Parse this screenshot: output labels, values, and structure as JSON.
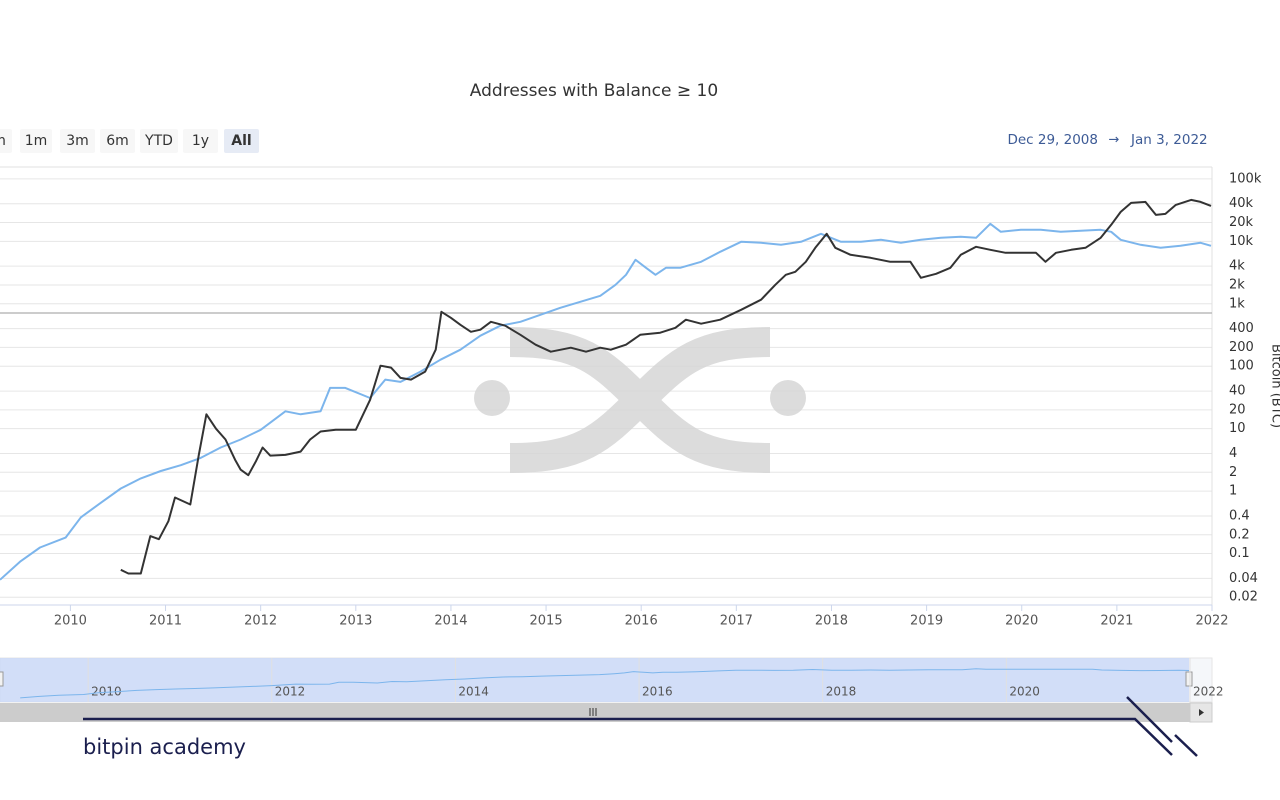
{
  "range_buttons": [
    "m",
    "1m",
    "3m",
    "6m",
    "YTD",
    "1y",
    "All"
  ],
  "selected_button": 6,
  "date_range": {
    "from": "Dec 29, 2008",
    "arrow": "→",
    "to": "Jan 3, 2022"
  },
  "chart_data": {
    "type": "line",
    "title": "Addresses with Balance ≥ 10",
    "y_label": "Bitcoin (BTC)",
    "log_y": true,
    "grid": true,
    "xlim": [
      2009.26,
      2022
    ],
    "xticks": [
      2010,
      2011,
      2012,
      2013,
      2014,
      2015,
      2016,
      2017,
      2018,
      2019,
      2020,
      2021,
      2022
    ],
    "ylim": [
      0.015,
      155000
    ],
    "yticks": [
      0.02,
      0.04,
      0.1,
      0.2,
      0.4,
      1,
      2,
      4,
      10,
      20,
      40,
      100,
      200,
      400,
      {
        "value": 1000,
        "label": "1k"
      },
      {
        "value": 2000,
        "label": "2k"
      },
      {
        "value": 4000,
        "label": "4k"
      },
      {
        "value": 10000,
        "label": "10k"
      },
      {
        "value": 20000,
        "label": "20k"
      },
      {
        "value": 40000,
        "label": "40k"
      },
      {
        "value": 100000,
        "label": "100k"
      }
    ],
    "series": [
      {
        "color": "#7cb5ec",
        "x": [
          2009.26,
          2009.47,
          2009.68,
          2009.95,
          2010.11,
          2010.32,
          2010.53,
          2010.74,
          2010.95,
          2011.16,
          2011.37,
          2011.58,
          2011.79,
          2012.0,
          2012.26,
          2012.42,
          2012.63,
          2012.73,
          2012.89,
          2013.15,
          2013.31,
          2013.47,
          2013.68,
          2013.89,
          2014.1,
          2014.31,
          2014.52,
          2014.73,
          2014.94,
          2015.15,
          2015.36,
          2015.57,
          2015.73,
          2015.84,
          2015.94,
          2016.05,
          2016.15,
          2016.26,
          2016.41,
          2016.63,
          2016.83,
          2017.05,
          2017.26,
          2017.47,
          2017.68,
          2017.89,
          2018.1,
          2018.31,
          2018.52,
          2018.73,
          2018.94,
          2019.15,
          2019.36,
          2019.52,
          2019.67,
          2019.78,
          2019.99,
          2020.2,
          2020.41,
          2020.62,
          2020.83,
          2020.94,
          2021.04,
          2021.25,
          2021.46,
          2021.67,
          2021.88,
          2021.99
        ],
        "values": [
          0.038,
          0.074,
          0.125,
          0.18,
          0.38,
          0.65,
          1.1,
          1.6,
          2.1,
          2.6,
          3.4,
          5,
          6.7,
          9.6,
          19,
          17,
          19,
          45,
          45,
          31,
          61,
          56,
          82,
          127,
          184,
          308,
          445,
          515,
          667,
          863,
          1076,
          1343,
          2014,
          2911,
          5058,
          3767,
          2911,
          3767,
          3767,
          4699,
          6792,
          9817,
          9462,
          8790,
          9817,
          13183,
          9817,
          9817,
          10568,
          9462,
          10568,
          11376,
          11803,
          11376,
          19055,
          14191,
          15276,
          15276,
          14191,
          14723,
          15276,
          14191,
          10568,
          8790,
          7870,
          8472,
          9462,
          8472
        ]
      },
      {
        "color": "#333333",
        "x": [
          2010.53,
          2010.61,
          2010.74,
          2010.84,
          2010.93,
          2011.03,
          2011.1,
          2011.26,
          2011.35,
          2011.43,
          2011.53,
          2011.63,
          2011.73,
          2011.79,
          2011.87,
          2011.95,
          2012.02,
          2012.1,
          2012.26,
          2012.42,
          2012.52,
          2012.63,
          2012.79,
          2013.0,
          2013.15,
          2013.26,
          2013.37,
          2013.47,
          2013.58,
          2013.73,
          2013.84,
          2013.9,
          2014.0,
          2014.1,
          2014.21,
          2014.31,
          2014.42,
          2014.57,
          2014.73,
          2014.89,
          2015.05,
          2015.26,
          2015.42,
          2015.57,
          2015.68,
          2015.84,
          2015.99,
          2016.2,
          2016.36,
          2016.47,
          2016.63,
          2016.83,
          2017.05,
          2017.26,
          2017.41,
          2017.52,
          2017.62,
          2017.73,
          2017.83,
          2017.95,
          2018.04,
          2018.2,
          2018.41,
          2018.62,
          2018.83,
          2018.94,
          2019.1,
          2019.25,
          2019.36,
          2019.52,
          2019.67,
          2019.83,
          2019.99,
          2020.15,
          2020.25,
          2020.36,
          2020.52,
          2020.67,
          2020.83,
          2020.94,
          2021.04,
          2021.15,
          2021.3,
          2021.41,
          2021.51,
          2021.62,
          2021.78,
          2021.88,
          2021.99
        ],
        "values": [
          0.055,
          0.048,
          0.048,
          0.19,
          0.17,
          0.33,
          0.79,
          0.61,
          3.8,
          17,
          10,
          6.7,
          3.2,
          2.2,
          1.8,
          3,
          5,
          3.7,
          3.8,
          4.3,
          6.7,
          9,
          9.6,
          9.6,
          29,
          102,
          95,
          65,
          61,
          82,
          184,
          745,
          597,
          461,
          356,
          384,
          515,
          445,
          319,
          221,
          171,
          198,
          171,
          198,
          184,
          221,
          319,
          344,
          413,
          555,
          479,
          555,
          802,
          1160,
          2014,
          2911,
          3251,
          4699,
          7870,
          13183,
          7870,
          6081,
          5445,
          4699,
          4699,
          2606,
          3020,
          3767,
          6081,
          8166,
          7311,
          6546,
          6546,
          6546,
          4699,
          6546,
          7311,
          7870,
          11376,
          18365,
          29648,
          41305,
          42855,
          26546,
          27542,
          38370,
          46132,
          42855,
          36983
        ]
      }
    ]
  },
  "navigator": {
    "xlim": [
      2009.04,
      2022.24
    ],
    "xticks": [
      2010,
      2012,
      2014,
      2016,
      2018,
      2020,
      2022
    ]
  },
  "watermark": "bitpin academy"
}
